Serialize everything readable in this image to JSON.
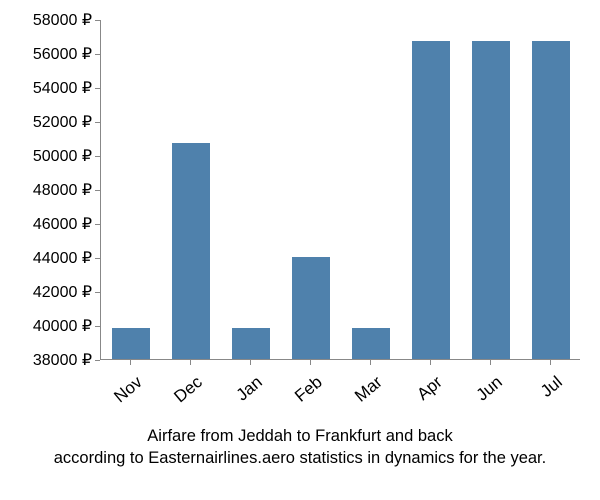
{
  "chart": {
    "type": "bar",
    "categories": [
      "Nov",
      "Dec",
      "Jan",
      "Feb",
      "Mar",
      "Apr",
      "Jun",
      "Jul"
    ],
    "values": [
      39800,
      50700,
      39800,
      44000,
      39800,
      56700,
      56700,
      56700
    ],
    "bar_color": "#4f81ac",
    "background_color": "#ffffff",
    "axis_color": "#888888",
    "text_color": "#000000",
    "ymin": 38000,
    "ymax": 58000,
    "ytick_step": 2000,
    "ytick_suffix": " ₽",
    "y_label_fontsize": 16,
    "x_label_fontsize": 17,
    "x_label_rotation": -40,
    "bar_width_ratio": 0.62,
    "caption_line1": "Airfare from Jeddah to Frankfurt and back",
    "caption_line2": "according to Easternairlines.aero statistics in dynamics for the year.",
    "caption_fontsize": 16.5
  }
}
